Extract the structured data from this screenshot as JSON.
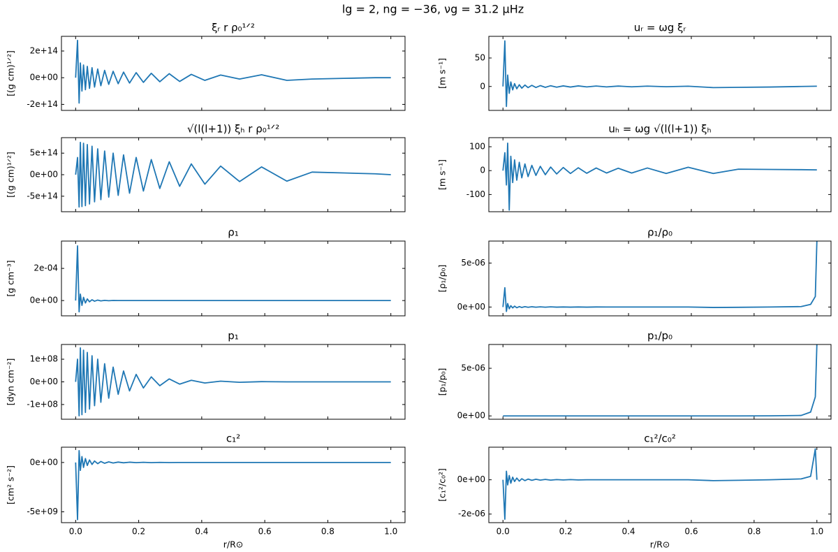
{
  "title": "lg = 2, ng = −36, νg = 31.2 μHz",
  "chart_data": [
    {
      "type": "line",
      "title": "ξᵣ r ρ₀¹ᐟ²",
      "ylabel": "[(g cm)¹ᐟ²]",
      "color": "#1f77b4",
      "x": [
        0,
        0.006,
        0.011,
        0.015,
        0.02,
        0.025,
        0.031,
        0.037,
        0.044,
        0.052,
        0.06,
        0.07,
        0.08,
        0.092,
        0.105,
        0.119,
        0.135,
        0.152,
        0.171,
        0.192,
        0.215,
        0.24,
        0.267,
        0.297,
        0.33,
        0.367,
        0.41,
        0.46,
        0.52,
        0.59,
        0.67,
        0.75,
        0.85,
        0.95,
        1.0
      ],
      "values": [
        0,
        280000000000000.0,
        -190000000000000.0,
        110000000000000.0,
        -100000000000000.0,
        95000000000000.0,
        -90000000000000.0,
        85000000000000.0,
        -80000000000000.0,
        75000000000000.0,
        -70000000000000.0,
        65000000000000.0,
        -60000000000000.0,
        55000000000000.0,
        -50000000000000.0,
        48000000000000.0,
        -45000000000000.0,
        42000000000000.0,
        -40000000000000.0,
        38000000000000.0,
        -35000000000000.0,
        33000000000000.0,
        -30000000000000.0,
        30000000000000.0,
        -28000000000000.0,
        25000000000000.0,
        -20000000000000.0,
        20000000000000.0,
        -10000000000000.0,
        22000000000000.0,
        -20000000000000.0,
        -10000000000000.0,
        -5000000000000.0,
        0,
        0
      ],
      "xlim": [
        -0.045,
        1.045
      ],
      "xticks": [
        0,
        0.2,
        0.4,
        0.6,
        0.8,
        1.0
      ],
      "ylim": [
        -245000000000000.0,
        310000000000000.0
      ],
      "yticks": [
        {
          "value": -200000000000000.0,
          "label": "-2e+14"
        },
        {
          "value": 0,
          "label": "0e+00"
        },
        {
          "value": 200000000000000.0,
          "label": "2e+14"
        }
      ]
    },
    {
      "type": "line",
      "title": "uᵣ = ωg ξᵣ",
      "ylabel": "[m s⁻¹]",
      "color": "#1f77b4",
      "x": [
        0,
        0.006,
        0.011,
        0.015,
        0.02,
        0.025,
        0.031,
        0.037,
        0.044,
        0.052,
        0.06,
        0.07,
        0.08,
        0.092,
        0.105,
        0.119,
        0.135,
        0.152,
        0.171,
        0.192,
        0.215,
        0.24,
        0.267,
        0.297,
        0.33,
        0.367,
        0.41,
        0.46,
        0.52,
        0.59,
        0.67,
        0.75,
        0.85,
        0.95,
        1.0
      ],
      "values": [
        0,
        80,
        -35,
        20,
        -12,
        8,
        -6,
        5,
        -4,
        3,
        -3,
        2.5,
        -2,
        2,
        -1.8,
        1.5,
        -1.5,
        1.3,
        -1.2,
        1,
        -1,
        1,
        -0.8,
        0.8,
        -0.8,
        0.7,
        -0.6,
        0.6,
        -0.5,
        0.5,
        -2,
        -1.5,
        -1,
        0,
        0.5
      ],
      "xlim": [
        -0.045,
        1.045
      ],
      "xticks": [
        0,
        0.2,
        0.4,
        0.6,
        0.8,
        1.0
      ],
      "ylim": [
        -42,
        88
      ],
      "yticks": [
        0,
        50
      ]
    },
    {
      "type": "line",
      "title": "√(l(l+1)) ξₕ r ρ₀¹ᐟ²",
      "ylabel": "[(g cm)¹ᐟ²]",
      "color": "#1f77b4",
      "x": [
        0,
        0.006,
        0.011,
        0.015,
        0.02,
        0.025,
        0.031,
        0.037,
        0.044,
        0.052,
        0.06,
        0.07,
        0.08,
        0.092,
        0.105,
        0.119,
        0.135,
        0.152,
        0.171,
        0.192,
        0.215,
        0.24,
        0.267,
        0.297,
        0.33,
        0.367,
        0.41,
        0.46,
        0.52,
        0.59,
        0.67,
        0.75,
        0.85,
        0.95,
        1.0
      ],
      "values": [
        0,
        400000000000000.0,
        -750000000000000.0,
        750000000000000.0,
        -740000000000000.0,
        730000000000000.0,
        -720000000000000.0,
        700000000000000.0,
        -680000000000000.0,
        660000000000000.0,
        -630000000000000.0,
        600000000000000.0,
        -580000000000000.0,
        550000000000000.0,
        -520000000000000.0,
        500000000000000.0,
        -480000000000000.0,
        460000000000000.0,
        -430000000000000.0,
        400000000000000.0,
        -380000000000000.0,
        350000000000000.0,
        -320000000000000.0,
        300000000000000.0,
        -270000000000000.0,
        250000000000000.0,
        -220000000000000.0,
        200000000000000.0,
        -160000000000000.0,
        180000000000000.0,
        -150000000000000.0,
        60000000000000.0,
        40000000000000.0,
        20000000000000.0,
        0
      ],
      "xlim": [
        -0.045,
        1.045
      ],
      "xticks": [
        0,
        0.2,
        0.4,
        0.6,
        0.8,
        1.0
      ],
      "ylim": [
        -860000000000000.0,
        860000000000000.0
      ],
      "yticks": [
        {
          "value": -500000000000000.0,
          "label": "-5e+14"
        },
        {
          "value": 0,
          "label": "0e+00"
        },
        {
          "value": 500000000000000.0,
          "label": "5e+14"
        }
      ]
    },
    {
      "type": "line",
      "title": "uₕ = ωg √(l(l+1)) ξₕ",
      "ylabel": "[m s⁻¹]",
      "color": "#1f77b4",
      "x": [
        0,
        0.006,
        0.011,
        0.015,
        0.02,
        0.025,
        0.031,
        0.037,
        0.044,
        0.052,
        0.06,
        0.07,
        0.08,
        0.092,
        0.105,
        0.119,
        0.135,
        0.152,
        0.171,
        0.192,
        0.215,
        0.24,
        0.267,
        0.297,
        0.33,
        0.367,
        0.41,
        0.46,
        0.52,
        0.59,
        0.67,
        0.75,
        0.85,
        0.95,
        1.0
      ],
      "values": [
        0,
        75,
        -60,
        115,
        -165,
        60,
        -50,
        45,
        -40,
        35,
        -30,
        28,
        -25,
        22,
        -20,
        18,
        -17,
        15,
        -14,
        13,
        -12,
        12,
        -11,
        11,
        -10,
        10,
        -10,
        11,
        -12,
        14,
        -12,
        6,
        5,
        4,
        3
      ],
      "xlim": [
        -0.045,
        1.045
      ],
      "xticks": [
        0,
        0.2,
        0.4,
        0.6,
        0.8,
        1.0
      ],
      "ylim": [
        -172,
        138
      ],
      "yticks": [
        -100,
        0,
        100
      ]
    },
    {
      "type": "line",
      "title": "ρ₁",
      "ylabel": "[g cm⁻³]",
      "color": "#1f77b4",
      "x": [
        0,
        0.006,
        0.011,
        0.015,
        0.02,
        0.025,
        0.031,
        0.037,
        0.044,
        0.052,
        0.06,
        0.07,
        0.08,
        0.092,
        0.105,
        0.119,
        0.135,
        0.152,
        0.171,
        0.192,
        0.215,
        0.24,
        0.267,
        0.297,
        0.33,
        0.367,
        0.41,
        0.46,
        0.52,
        0.59,
        0.67,
        0.75,
        0.85,
        0.95,
        1.0
      ],
      "values": [
        0,
        0.00034,
        -7e-05,
        4e-05,
        -3e-05,
        2e-05,
        -1.5e-05,
        1e-05,
        -8e-06,
        5e-06,
        -4e-06,
        3e-06,
        -2e-06,
        1e-06,
        -1e-06,
        5e-07,
        0,
        0,
        0,
        0,
        0,
        0,
        0,
        0,
        0,
        0,
        0,
        0,
        0,
        0,
        0,
        0,
        0,
        0,
        0
      ],
      "xlim": [
        -0.045,
        1.045
      ],
      "xticks": [
        0,
        0.2,
        0.4,
        0.6,
        0.8,
        1.0
      ],
      "ylim": [
        -9.5e-05,
        0.00037
      ],
      "yticks": [
        {
          "value": 0,
          "label": "0e+00"
        },
        {
          "value": 0.0002,
          "label": "2e-04"
        }
      ]
    },
    {
      "type": "line",
      "title": "ρ₁/ρ₀",
      "ylabel": "[ρ₁/ρ₀]",
      "color": "#1f77b4",
      "x": [
        0,
        0.006,
        0.011,
        0.015,
        0.02,
        0.025,
        0.031,
        0.037,
        0.044,
        0.052,
        0.06,
        0.07,
        0.08,
        0.092,
        0.105,
        0.119,
        0.135,
        0.152,
        0.171,
        0.192,
        0.215,
        0.24,
        0.267,
        0.297,
        0.33,
        0.367,
        0.41,
        0.46,
        0.52,
        0.59,
        0.67,
        0.75,
        0.85,
        0.95,
        0.98,
        0.995,
        1.0
      ],
      "values": [
        0,
        2.2e-06,
        -5e-07,
        4e-07,
        -2e-07,
        1.5e-07,
        -1e-07,
        1e-07,
        -8e-08,
        5e-08,
        -5e-08,
        4e-08,
        -3e-08,
        3e-08,
        -2e-08,
        2e-08,
        -2e-08,
        2e-08,
        -1e-08,
        1e-08,
        -1e-08,
        1e-08,
        -1e-08,
        1e-08,
        0,
        0,
        0,
        0,
        0,
        0,
        -5e-08,
        -3e-08,
        0,
        5e-08,
        3e-07,
        1.2e-06,
        7.5e-06
      ],
      "xlim": [
        -0.045,
        1.045
      ],
      "xticks": [
        0,
        0.2,
        0.4,
        0.6,
        0.8,
        1.0
      ],
      "ylim": [
        -1e-06,
        7.5e-06
      ],
      "yticks": [
        {
          "value": 0,
          "label": "0e+00"
        },
        {
          "value": 5e-06,
          "label": "5e-06"
        }
      ]
    },
    {
      "type": "line",
      "title": "p₁",
      "ylabel": "[dyn cm⁻²]",
      "color": "#1f77b4",
      "x": [
        0,
        0.006,
        0.011,
        0.015,
        0.02,
        0.025,
        0.031,
        0.037,
        0.044,
        0.052,
        0.06,
        0.07,
        0.08,
        0.092,
        0.105,
        0.119,
        0.135,
        0.152,
        0.171,
        0.192,
        0.215,
        0.24,
        0.267,
        0.297,
        0.33,
        0.367,
        0.41,
        0.46,
        0.52,
        0.59,
        0.67,
        0.75,
        0.85,
        0.95,
        1.0
      ],
      "values": [
        0,
        100000000.0,
        -150000000.0,
        150000000.0,
        -145000000.0,
        140000000.0,
        -135000000.0,
        130000000.0,
        -120000000.0,
        115000000.0,
        -105000000.0,
        100000000.0,
        -90000000.0,
        80000000.0,
        -72000000.0,
        65000000.0,
        -55000000.0,
        48000000.0,
        -40000000.0,
        33000000.0,
        -27000000.0,
        22000000.0,
        -17000000.0,
        13000000.0,
        -10000000.0,
        7000000.0,
        -5000000.0,
        3000000.0,
        -2000000.0,
        1000000.0,
        0,
        0,
        0,
        0,
        0
      ],
      "xlim": [
        -0.045,
        1.045
      ],
      "xticks": [
        0,
        0.2,
        0.4,
        0.6,
        0.8,
        1.0
      ],
      "ylim": [
        -165000000.0,
        165000000.0
      ],
      "yticks": [
        {
          "value": -100000000.0,
          "label": "-1e+08"
        },
        {
          "value": 0,
          "label": "0e+00"
        },
        {
          "value": 100000000.0,
          "label": "1e+08"
        }
      ]
    },
    {
      "type": "line",
      "title": "p₁/p₀",
      "ylabel": "[p₁/p₀]",
      "color": "#1f77b4",
      "x": [
        0,
        0.006,
        0.011,
        0.015,
        0.02,
        0.025,
        0.031,
        0.037,
        0.044,
        0.052,
        0.06,
        0.07,
        0.08,
        0.092,
        0.105,
        0.119,
        0.135,
        0.152,
        0.171,
        0.192,
        0.215,
        0.24,
        0.267,
        0.297,
        0.33,
        0.367,
        0.41,
        0.46,
        0.52,
        0.59,
        0.67,
        0.75,
        0.85,
        0.95,
        0.98,
        0.995,
        1.0
      ],
      "values": [
        0,
        0,
        0,
        0,
        0,
        0,
        0,
        0,
        0,
        0,
        0,
        0,
        0,
        0,
        0,
        0,
        0,
        0,
        0,
        0,
        0,
        0,
        0,
        0,
        0,
        0,
        0,
        0,
        0,
        0,
        0,
        0,
        1e-08,
        5e-08,
        4e-07,
        2e-06,
        7.5e-06
      ],
      "xlim": [
        -0.045,
        1.045
      ],
      "xticks": [
        0,
        0.2,
        0.4,
        0.6,
        0.8,
        1.0
      ],
      "ylim": [
        -3.5e-07,
        7.5e-06
      ],
      "yticks": [
        {
          "value": 0,
          "label": "0e+00"
        },
        {
          "value": 5e-06,
          "label": "5e-06"
        }
      ]
    },
    {
      "type": "line",
      "title": "c₁²",
      "ylabel": "[cm² s⁻²]",
      "xlabel": "r/R⊙",
      "color": "#1f77b4",
      "x": [
        0,
        0.006,
        0.011,
        0.015,
        0.02,
        0.025,
        0.031,
        0.037,
        0.044,
        0.052,
        0.06,
        0.07,
        0.08,
        0.092,
        0.105,
        0.119,
        0.135,
        0.152,
        0.171,
        0.192,
        0.215,
        0.24,
        0.267,
        0.297,
        0.33,
        0.367,
        0.41,
        0.46,
        0.52,
        0.59,
        0.67,
        0.75,
        0.85,
        0.95,
        1.0
      ],
      "values": [
        0,
        -5800000000.0,
        1200000000.0,
        -800000000.0,
        600000000.0,
        -500000000.0,
        400000000.0,
        -300000000.0,
        250000000.0,
        -200000000.0,
        150000000.0,
        -120000000.0,
        100000000.0,
        -80000000.0,
        60000000.0,
        -50000000.0,
        40000000.0,
        -30000000.0,
        30000000.0,
        -20000000.0,
        20000000.0,
        -20000000.0,
        10000000.0,
        -10000000.0,
        0,
        0,
        0,
        0,
        0,
        0,
        0,
        0,
        0,
        0,
        0
      ],
      "xlim": [
        -0.045,
        1.045
      ],
      "xticks": [
        {
          "value": 0,
          "label": "0.0"
        },
        {
          "value": 0.2,
          "label": "0.2"
        },
        {
          "value": 0.4,
          "label": "0.4"
        },
        {
          "value": 0.6,
          "label": "0.6"
        },
        {
          "value": 0.8,
          "label": "0.8"
        },
        {
          "value": 1.0,
          "label": "1.0"
        }
      ],
      "ylim": [
        -6100000000.0,
        1550000000.0
      ],
      "yticks": [
        {
          "value": -5000000000.0,
          "label": "-5e+09"
        },
        {
          "value": 0,
          "label": "0e+00"
        }
      ]
    },
    {
      "type": "line",
      "title": "c₁²/c₀²",
      "ylabel": "[c₁²/c₀²]",
      "xlabel": "r/R⊙",
      "color": "#1f77b4",
      "x": [
        0,
        0.006,
        0.011,
        0.015,
        0.02,
        0.025,
        0.031,
        0.037,
        0.044,
        0.052,
        0.06,
        0.07,
        0.08,
        0.092,
        0.105,
        0.119,
        0.135,
        0.152,
        0.171,
        0.192,
        0.215,
        0.24,
        0.267,
        0.297,
        0.33,
        0.367,
        0.41,
        0.46,
        0.52,
        0.59,
        0.67,
        0.75,
        0.85,
        0.95,
        0.98,
        0.995,
        1.0
      ],
      "values": [
        0,
        -2.3e-06,
        5e-07,
        -3e-07,
        2.5e-07,
        -2e-07,
        1.5e-07,
        -1e-07,
        1e-07,
        -8e-08,
        6e-08,
        -5e-08,
        4e-08,
        -3e-08,
        3e-08,
        -2e-08,
        2e-08,
        -2e-08,
        1e-08,
        -1e-08,
        1e-08,
        -1e-08,
        0,
        0,
        0,
        0,
        0,
        0,
        0,
        0,
        -5e-08,
        -3e-08,
        0,
        5e-08,
        2e-07,
        1.8e-06,
        0
      ],
      "xlim": [
        -0.045,
        1.045
      ],
      "xticks": [
        {
          "value": 0,
          "label": "0.0"
        },
        {
          "value": 0.2,
          "label": "0.2"
        },
        {
          "value": 0.4,
          "label": "0.4"
        },
        {
          "value": 0.6,
          "label": "0.6"
        },
        {
          "value": 0.8,
          "label": "0.8"
        },
        {
          "value": 1.0,
          "label": "1.0"
        }
      ],
      "ylim": [
        -2.5e-06,
        1.9e-06
      ],
      "yticks": [
        {
          "value": -2e-06,
          "label": "-2e-06"
        },
        {
          "value": 0,
          "label": "0e+00"
        }
      ]
    }
  ]
}
